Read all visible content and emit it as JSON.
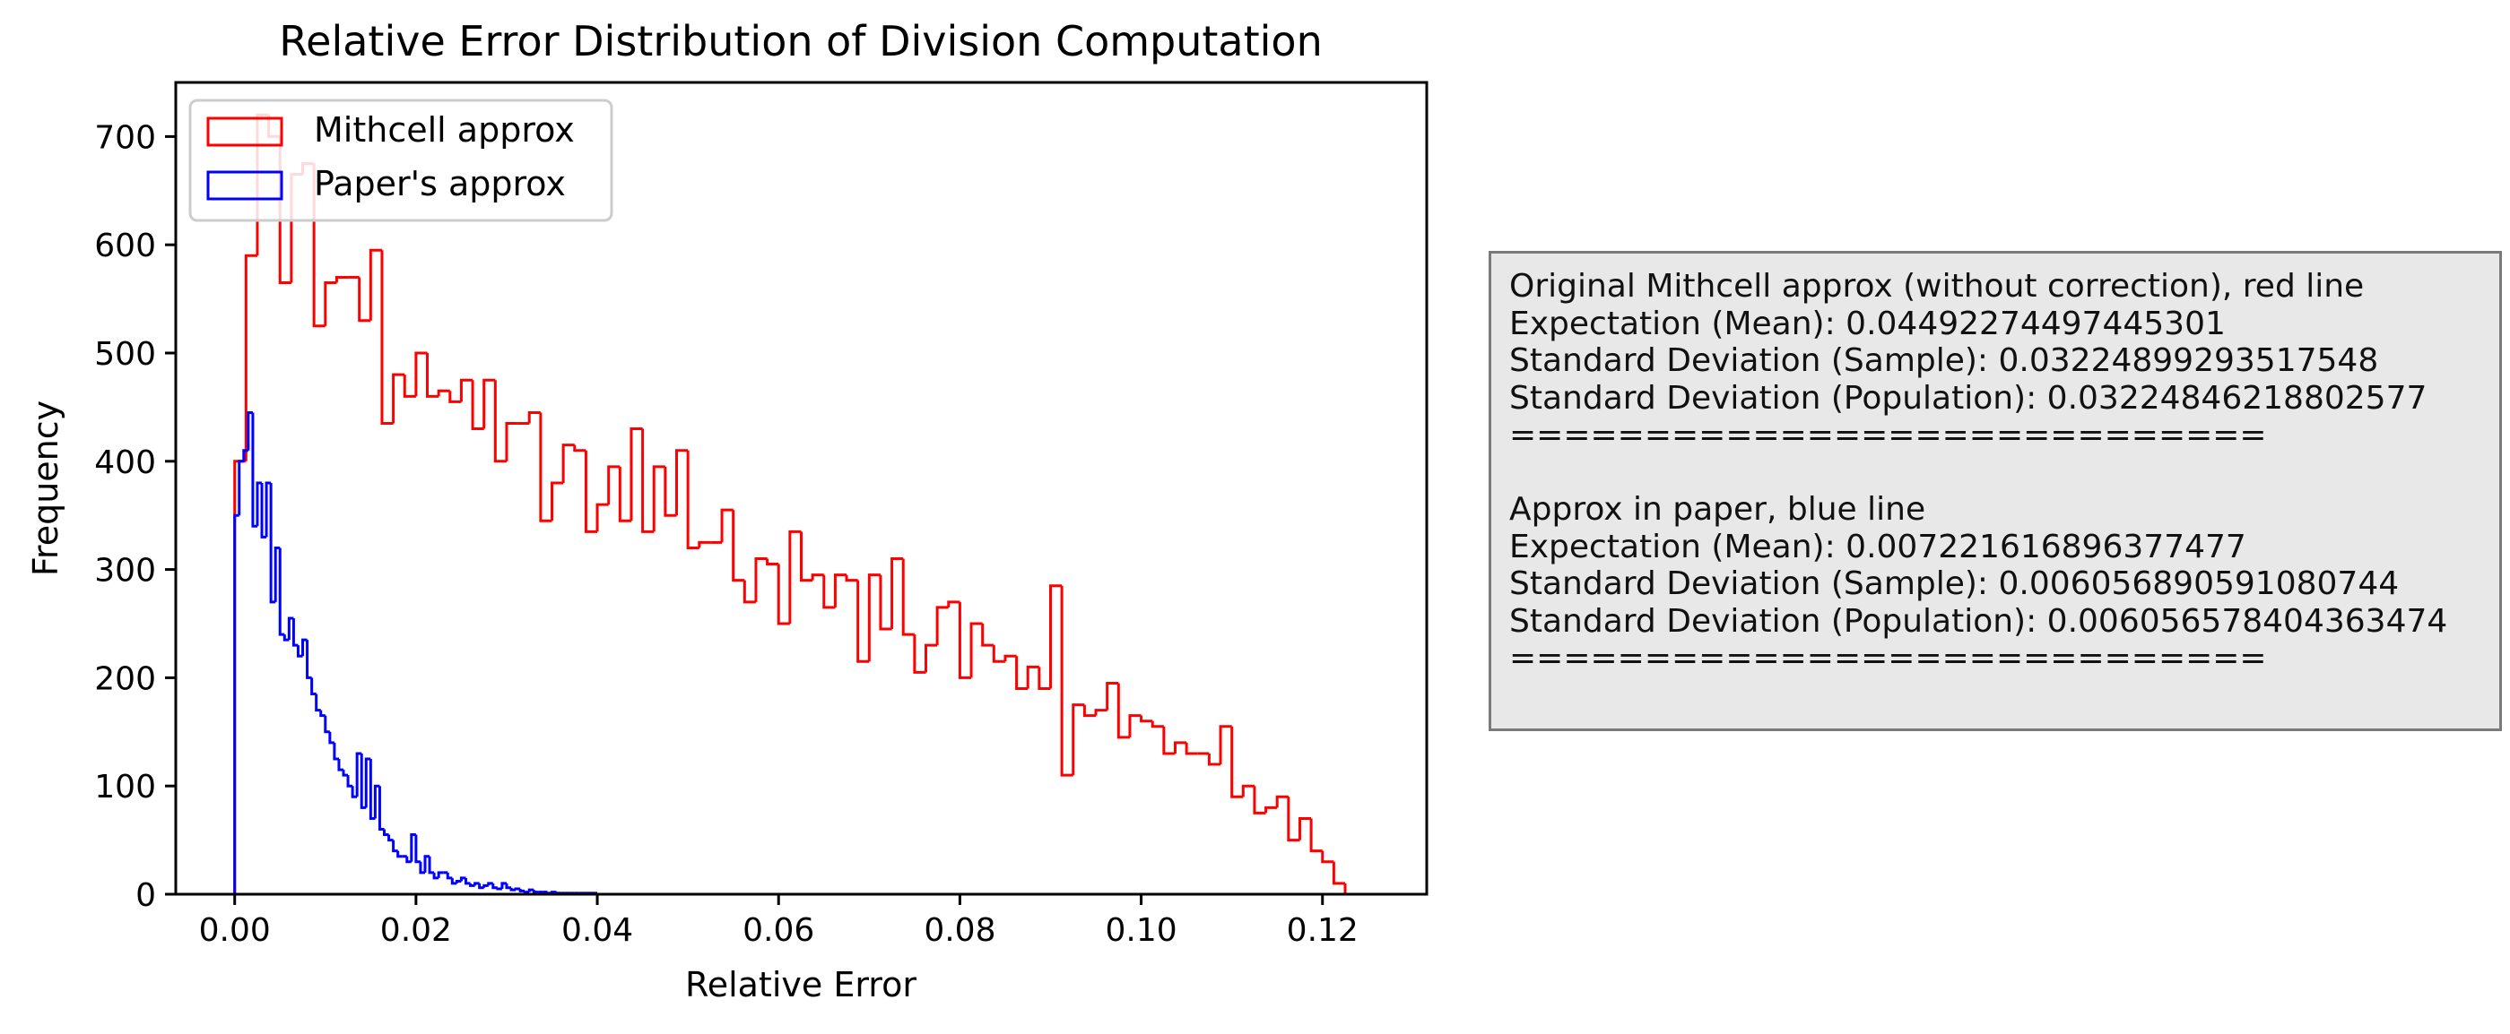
{
  "chart_data": {
    "type": "histogram",
    "title": "Relative Error Distribution of Division Computation",
    "xlabel": "Relative Error",
    "ylabel": "Frequency",
    "xlim": [
      -0.0065,
      0.1315
    ],
    "ylim": [
      0,
      750
    ],
    "xticks": [
      0.0,
      0.02,
      0.04,
      0.06,
      0.08,
      0.1,
      0.12
    ],
    "xtick_labels": [
      "0.00",
      "0.02",
      "0.04",
      "0.06",
      "0.08",
      "0.10",
      "0.12"
    ],
    "yticks": [
      0,
      100,
      200,
      300,
      400,
      500,
      600,
      700
    ],
    "ytick_labels": [
      "0",
      "100",
      "200",
      "300",
      "400",
      "500",
      "600",
      "700"
    ],
    "grid": false,
    "legend_position": "upper-left",
    "series": [
      {
        "name": "Mithcell approx",
        "color": "#ff0000",
        "histtype": "step",
        "bin_start": 0.0,
        "bin_width": 0.00125,
        "counts": [
          400,
          590,
          720,
          700,
          565,
          665,
          675,
          525,
          565,
          570,
          570,
          530,
          595,
          435,
          480,
          460,
          500,
          460,
          465,
          455,
          475,
          430,
          475,
          400,
          435,
          435,
          445,
          345,
          380,
          415,
          410,
          335,
          360,
          395,
          345,
          430,
          335,
          395,
          350,
          410,
          320,
          325,
          325,
          355,
          290,
          270,
          310,
          305,
          250,
          335,
          290,
          295,
          265,
          295,
          290,
          215,
          295,
          245,
          310,
          240,
          205,
          230,
          265,
          270,
          200,
          250,
          230,
          215,
          220,
          190,
          210,
          190,
          285,
          110,
          175,
          165,
          170,
          195,
          145,
          165,
          160,
          155,
          130,
          140,
          130,
          130,
          120,
          155,
          90,
          100,
          75,
          80,
          90,
          50,
          70,
          40,
          30,
          10
        ]
      },
      {
        "name": "Paper's approx",
        "color": "#0000ff",
        "histtype": "step",
        "bin_start": 0.0,
        "bin_width": 0.0005,
        "counts": [
          350,
          400,
          410,
          445,
          340,
          380,
          330,
          380,
          270,
          320,
          240,
          235,
          255,
          230,
          220,
          235,
          200,
          185,
          170,
          165,
          150,
          140,
          125,
          115,
          110,
          100,
          90,
          130,
          80,
          125,
          70,
          100,
          60,
          55,
          50,
          40,
          35,
          35,
          30,
          55,
          30,
          20,
          35,
          20,
          15,
          20,
          20,
          15,
          10,
          12,
          15,
          10,
          8,
          10,
          6,
          8,
          10,
          6,
          5,
          10,
          6,
          4,
          5,
          3,
          2,
          4,
          2,
          2,
          2,
          1,
          2,
          1,
          1,
          1,
          1,
          1,
          1,
          1,
          1,
          1
        ]
      }
    ]
  },
  "stats_panel": {
    "lines": [
      "Original Mithcell approx (without correction), red line",
      "Expectation (Mean): 0.04492274497445301",
      "Standard Deviation (Sample): 0.03224899293517548",
      "Standard Deviation (Population): 0.03224846218802577",
      "============================",
      "",
      "Approx in paper, blue line",
      "Expectation (Mean): 0.007221616896377477",
      "Standard Deviation (Sample): 0.006056890591080744",
      "Standard Deviation (Population): 0.006056578404363474",
      "============================"
    ]
  }
}
